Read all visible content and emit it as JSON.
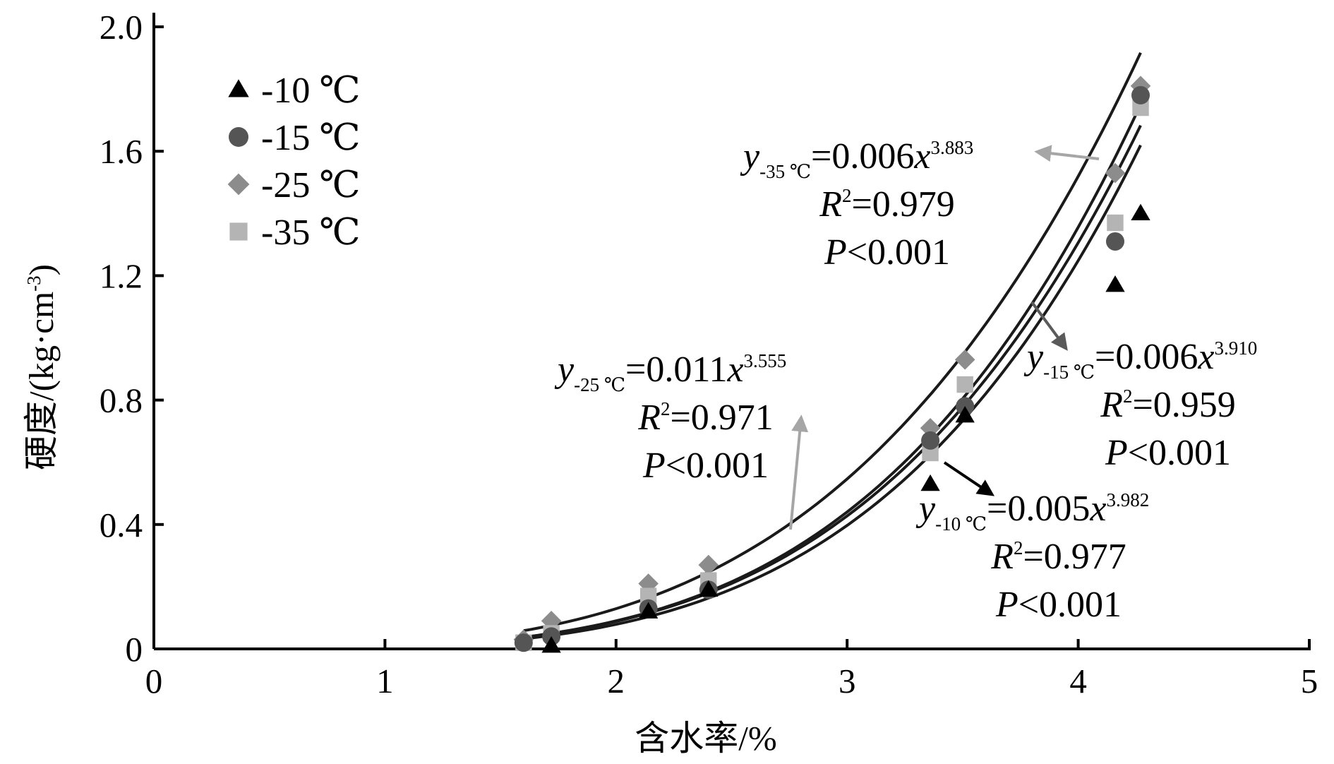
{
  "chart_data": {
    "type": "scatter",
    "xlabel": "含水率/%",
    "ylabel": "硬度/(kg·cm",
    "ylabel_sup": "-3",
    "ylabel_close": ")",
    "xlim": [
      0,
      5
    ],
    "ylim": [
      0,
      2.0
    ],
    "x_ticks": [
      0,
      1,
      2,
      3,
      4,
      5
    ],
    "y_ticks": [
      0,
      0.4,
      0.8,
      1.2,
      1.6,
      2.0
    ],
    "x_tick_labels": [
      "0",
      "1",
      "2",
      "3",
      "4",
      "5"
    ],
    "y_tick_labels": [
      "0",
      "0.4",
      "0.8",
      "1.2",
      "1.6",
      "2.0"
    ],
    "grid": false,
    "legend_position": "top-left",
    "series": [
      {
        "name": "-10 ℃",
        "marker": "triangle",
        "color": "#000000",
        "x": [
          1.72,
          2.14,
          2.4,
          3.36,
          3.51,
          4.16,
          4.27
        ],
        "y": [
          0.01,
          0.12,
          0.19,
          0.53,
          0.75,
          1.17,
          1.4
        ],
        "fit": {
          "a": 0.005,
          "b": 3.982,
          "x_range": [
            1.6,
            4.27
          ]
        }
      },
      {
        "name": "-15 ℃",
        "marker": "circle",
        "color": "#555555",
        "x": [
          1.6,
          1.72,
          2.14,
          2.4,
          3.36,
          3.51,
          4.16,
          4.27
        ],
        "y": [
          0.02,
          0.04,
          0.13,
          0.19,
          0.67,
          0.78,
          1.31,
          1.78
        ],
        "fit": {
          "a": 0.006,
          "b": 3.91,
          "x_range": [
            1.6,
            4.27
          ]
        }
      },
      {
        "name": "-25 ℃",
        "marker": "diamond",
        "color": "#8c8c8c",
        "x": [
          1.6,
          1.72,
          2.14,
          2.4,
          3.36,
          3.51,
          4.16,
          4.27
        ],
        "y": [
          0.03,
          0.09,
          0.21,
          0.27,
          0.71,
          0.93,
          1.53,
          1.81
        ],
        "fit": {
          "a": 0.011,
          "b": 3.555,
          "x_range": [
            1.6,
            4.27
          ]
        }
      },
      {
        "name": "-35 ℃",
        "marker": "square",
        "color": "#b4b4b4",
        "x": [
          1.6,
          1.72,
          2.14,
          2.4,
          3.36,
          3.51,
          4.16,
          4.27
        ],
        "y": [
          0.02,
          0.05,
          0.17,
          0.22,
          0.63,
          0.85,
          1.37,
          1.74
        ],
        "fit": {
          "a": 0.006,
          "b": 3.883,
          "x_range": [
            1.6,
            4.27
          ]
        }
      }
    ],
    "annotations": [
      {
        "series": "-35 ℃",
        "y_sym": "y",
        "sub": "-35 ℃",
        "eq_rest": "=0.006",
        "x_sym": "x",
        "exp": "3.883",
        "r2_sym": "R",
        "r2_sup": "2",
        "r2_rest": "=0.979",
        "p_sym": "P",
        "p_rest": "<0.001",
        "arrow_color": "#a6a6a6"
      },
      {
        "series": "-25 ℃",
        "y_sym": "y",
        "sub": "-25 ℃",
        "eq_rest": "=0.011",
        "x_sym": "x",
        "exp": "3.555",
        "r2_sym": "R",
        "r2_sup": "2",
        "r2_rest": "=0.971",
        "p_sym": "P",
        "p_rest": "<0.001",
        "arrow_color": "#a6a6a6"
      },
      {
        "series": "-15 ℃",
        "y_sym": "y",
        "sub": "-15 ℃",
        "eq_rest": "=0.006",
        "x_sym": "x",
        "exp": "3.910",
        "r2_sym": "R",
        "r2_sup": "2",
        "r2_rest": "=0.959",
        "p_sym": "P",
        "p_rest": "<0.001",
        "arrow_color": "#5a5a5a"
      },
      {
        "series": "-10 ℃",
        "y_sym": "y",
        "sub": "-10 ℃",
        "eq_rest": "=0.005",
        "x_sym": "x",
        "exp": "3.982",
        "r2_sym": "R",
        "r2_sup": "2",
        "r2_rest": "=0.977",
        "p_sym": "P",
        "p_rest": "<0.001",
        "arrow_color": "#000000"
      }
    ]
  }
}
